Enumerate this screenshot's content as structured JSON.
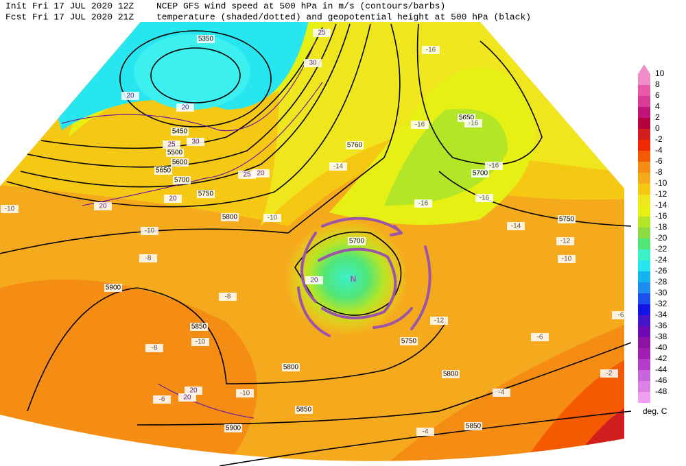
{
  "header": {
    "init": "Init  Fri 17 JUL 2020 12Z",
    "forecast": "Fcst Fri 17 JUL 2020 21Z",
    "title_line1": "NCEP GFS wind speed at 500 hPa in m/s (contours/barbs)",
    "title_line2": "temperature (shaded/dotted) and geopotential height at 500 hPa (black)"
  },
  "map": {
    "annotation": "N",
    "height_labels": [
      5350,
      5450,
      5500,
      5600,
      5650,
      5700,
      5750,
      5800,
      5760,
      5650,
      5700,
      5750,
      5700,
      5900,
      5850,
      5800,
      5750,
      5800,
      5850,
      5850,
      5900
    ],
    "temperature_labels": [
      -16,
      -16,
      -16,
      -16,
      -16,
      -16,
      -14,
      -12,
      -10,
      -10,
      -10,
      -8,
      -10,
      -14,
      -8,
      -10,
      -8,
      -6,
      -10,
      -12,
      -6,
      -4,
      -4,
      -2,
      -6
    ],
    "wind_labels": [
      25,
      30,
      20,
      20,
      25,
      30,
      20,
      25,
      20,
      20,
      20,
      20,
      20
    ]
  },
  "colorbar": {
    "unit": "deg. C",
    "levels": [
      10,
      8,
      6,
      4,
      2,
      0,
      -2,
      -4,
      -6,
      -8,
      -10,
      -12,
      -14,
      -16,
      -18,
      -20,
      -22,
      -24,
      -26,
      -28,
      -30,
      -32,
      -34,
      -36,
      -38,
      -40,
      -42,
      -44,
      -46,
      -48
    ],
    "colors": [
      "#f08cc8",
      "#e85aa8",
      "#d83c96",
      "#c01478",
      "#b4003c",
      "#d21e1e",
      "#f02800",
      "#f55a00",
      "#f58c14",
      "#f5aa1e",
      "#f5c814",
      "#f0e61e",
      "#e6f014",
      "#b4e628",
      "#8cdc46",
      "#50e678",
      "#3cf0c8",
      "#28e6f0",
      "#14b4f0",
      "#1e8cf0",
      "#1e50f0",
      "#1414e6",
      "#4614c8",
      "#6e0ab4",
      "#8c14a0",
      "#a01eb4",
      "#b43cc8",
      "#c864dc",
      "#dc82e6",
      "#f0a0f0"
    ]
  }
}
